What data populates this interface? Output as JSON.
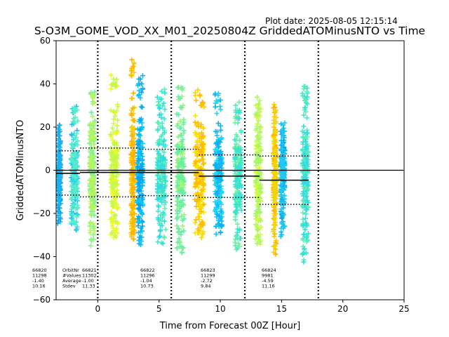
{
  "header": {
    "plot_date": "Plot date: 2025-08-05 12:15:14",
    "title": "S-O3M_GOME_VOD_XX_M01_20250804Z GriddedATOMinusNTO vs Time"
  },
  "chart_data": {
    "type": "scatter",
    "title": "S-O3M_GOME_VOD_XX_M01_20250804Z GriddedATOMinusNTO vs Time",
    "xlabel": "Time from Forecast 00Z [Hour]",
    "ylabel": "GriddedATOMinusNTO",
    "xlim": [
      -3.4,
      25
    ],
    "ylim": [
      -60,
      60
    ],
    "xticks": [
      0,
      5,
      10,
      15,
      20,
      25
    ],
    "yticks": [
      -60,
      -40,
      -20,
      0,
      20,
      40,
      60
    ],
    "grid": false,
    "marker": "plus",
    "forecast_boundaries_hours": [
      0,
      6,
      12,
      18
    ],
    "zero_line": 0,
    "orbits": [
      {
        "orbit_nr": "66820",
        "nvalues": "11298",
        "average": "-1.40",
        "stdev": "10.16",
        "t_start": -3.4,
        "t_end": -1.45,
        "upper": 9,
        "lower": -11.5
      },
      {
        "orbit_nr": "66821",
        "nvalues": "11302",
        "average": "-1.00",
        "stdev": "11.33",
        "t_start": -1.45,
        "t_end": 3.4,
        "upper": 10.3,
        "lower": -12.3
      },
      {
        "orbit_nr": "66822",
        "nvalues": "11296",
        "average": "-1.04",
        "stdev": "10.73",
        "t_start": 3.4,
        "t_end": 8.25,
        "upper": 9.7,
        "lower": -11.8
      },
      {
        "orbit_nr": "66823",
        "nvalues": "11299",
        "average": "-2.72",
        "stdev": "9.84",
        "t_start": 8.25,
        "t_end": 13.2,
        "upper": 7.1,
        "lower": -12.6
      },
      {
        "orbit_nr": "66824",
        "nvalues": "9981",
        "average": "-4.59",
        "stdev": "11.16",
        "t_start": 13.2,
        "t_end": 17.2,
        "upper": 6.6,
        "lower": -15.8
      }
    ],
    "stats_row_labels": [
      "OrbitNr",
      "#Values",
      "Average",
      "Stdev"
    ],
    "swaths": [
      {
        "t": -3.15,
        "w": 0.25,
        "top": 22,
        "bot": -25,
        "colors": [
          "#0ba3e8",
          "#18b4f0"
        ]
      },
      {
        "t": -1.9,
        "w": 0.55,
        "top": 31,
        "bot": -28,
        "colors": [
          "#19c0f0",
          "#2fd8e6",
          "#57ebc8"
        ]
      },
      {
        "t": -0.45,
        "w": 0.45,
        "top": 39,
        "bot": -36,
        "colors": [
          "#6df0a4",
          "#92f47e",
          "#b5f65c"
        ]
      },
      {
        "t": 1.35,
        "w": 0.6,
        "top": 47,
        "bot": -33,
        "colors": [
          "#d8f93a",
          "#eefb1a",
          "#c4f84c"
        ]
      },
      {
        "t": 2.85,
        "w": 0.3,
        "top": 53,
        "bot": -33,
        "colors": [
          "#ffc000",
          "#f5d200",
          "#ffb000"
        ]
      },
      {
        "t": 3.45,
        "w": 0.45,
        "top": 44,
        "bot": -35,
        "colors": [
          "#10b6f2",
          "#05c8ff",
          "#0aa4ec"
        ]
      },
      {
        "t": 5.2,
        "w": 0.7,
        "top": 38,
        "bot": -35,
        "colors": [
          "#40e8d0",
          "#62efb0",
          "#30dce0"
        ]
      },
      {
        "t": 6.75,
        "w": 0.6,
        "top": 39,
        "bot": -40,
        "colors": [
          "#80f290",
          "#a0f470",
          "#66ee a8"
        ]
      },
      {
        "t": 8.3,
        "w": 0.75,
        "top": 39,
        "bot": -33,
        "colors": [
          "#ffd000",
          "#f6e300",
          "#ffbb00"
        ]
      },
      {
        "t": 9.85,
        "w": 0.6,
        "top": 36,
        "bot": -30,
        "colors": [
          "#08c8ff",
          "#22d6f0",
          "#10b0f2"
        ]
      },
      {
        "t": 11.45,
        "w": 0.55,
        "top": 32,
        "bot": -38,
        "colors": [
          "#50ecbc",
          "#74f29c",
          "#38e2d4"
        ]
      },
      {
        "t": 13.1,
        "w": 0.45,
        "top": 34,
        "bot": -36,
        "colors": [
          "#bff854",
          "#daf938",
          "#a6f66a"
        ]
      },
      {
        "t": 14.45,
        "w": 0.25,
        "top": 31,
        "bot": -39,
        "colors": [
          "#ffc800",
          "#ffb400",
          "#f0d800"
        ]
      },
      {
        "t": 15.1,
        "w": 0.35,
        "top": 22,
        "bot": -34,
        "colors": [
          "#0ab6f4",
          "#04a8ec",
          "#20c8f0"
        ]
      },
      {
        "t": 16.95,
        "w": 0.5,
        "top": 40,
        "bot": -43,
        "colors": [
          "#44e8cc",
          "#5cedb6",
          "#34dcdc"
        ]
      }
    ]
  }
}
